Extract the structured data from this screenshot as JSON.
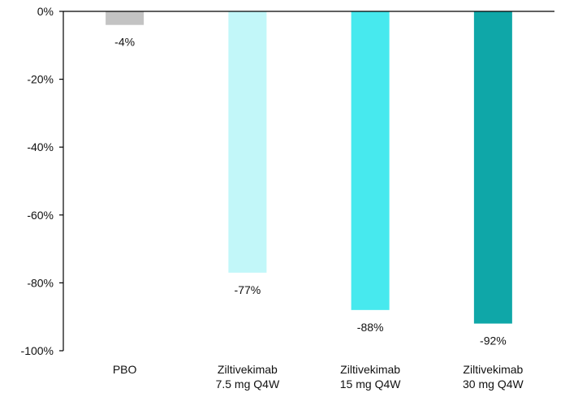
{
  "chart_data": {
    "type": "bar",
    "title": "",
    "xlabel": "",
    "ylabel": "",
    "ylim": [
      -100,
      0
    ],
    "yticks": [
      0,
      -20,
      -40,
      -60,
      -80,
      -100
    ],
    "ytick_labels": [
      "0%",
      "-20%",
      "-40%",
      "-60%",
      "-80%",
      "-100%"
    ],
    "categories": [
      [
        "PBO"
      ],
      [
        "Ziltivekimab",
        "7.5 mg Q4W"
      ],
      [
        "Ziltivekimab",
        "15 mg Q4W"
      ],
      [
        "Ziltivekimab",
        "30 mg Q4W"
      ]
    ],
    "values": [
      -4,
      -77,
      -88,
      -92
    ],
    "data_labels": [
      "-4%",
      "-77%",
      "-88%",
      "-92%"
    ],
    "colors": [
      "#c3c3c3",
      "#c2f7f9",
      "#47e9ee",
      "#0fa7a8"
    ],
    "grid": false,
    "legend": "none"
  }
}
